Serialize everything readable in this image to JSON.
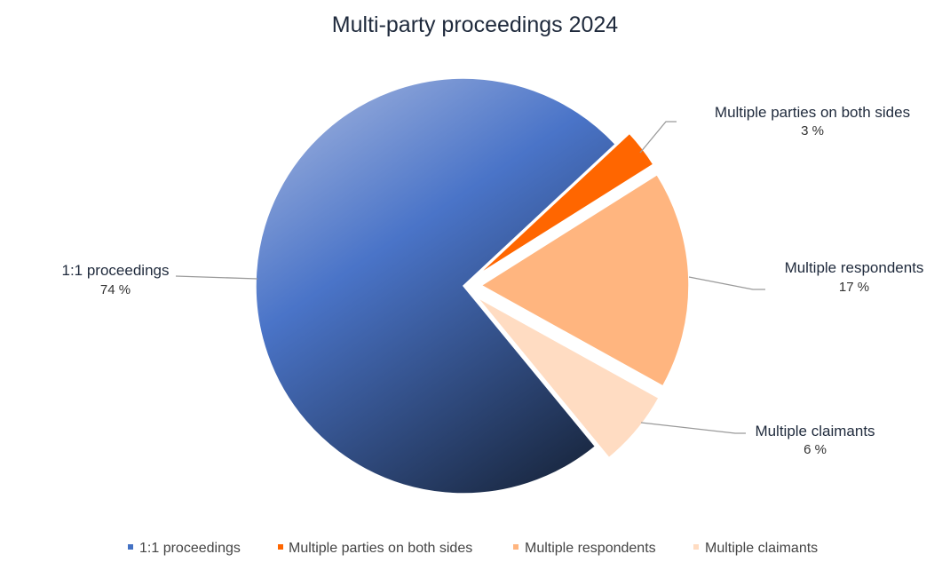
{
  "chart_data": {
    "type": "pie",
    "title": "Multi-party proceedings 2024",
    "categories": [
      "1:1 proceedings",
      "Multiple parties on both sides",
      "Multiple respondents",
      "Multiple claimants"
    ],
    "values": [
      74,
      3,
      17,
      6
    ],
    "value_labels": [
      "74 %",
      "3 %",
      "17 %",
      "6 %"
    ],
    "exploded": [
      false,
      true,
      true,
      true
    ],
    "colors": [
      "#4472c4",
      "#ff6600",
      "#ffb57f",
      "#ffdcc2"
    ],
    "legend": {
      "position": "bottom",
      "entries": [
        "1:1 proceedings",
        "Multiple parties on both sides",
        "Multiple respondents",
        "Multiple claimants"
      ]
    }
  }
}
